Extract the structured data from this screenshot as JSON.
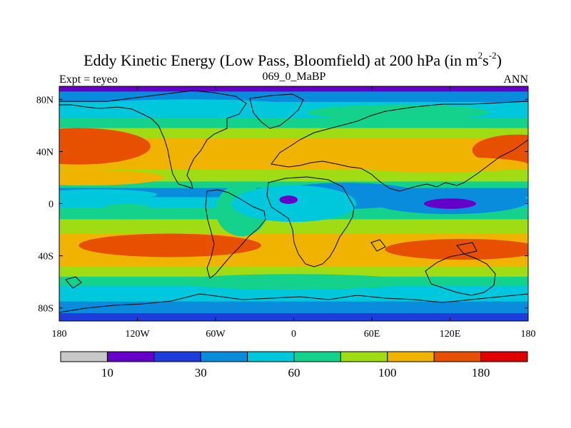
{
  "chart_data": {
    "type": "heatmap",
    "title": {
      "main": "Eddy Kinetic Energy (Low Pass, Bloomfield) at 200 hPa (in m",
      "unit_base": "s",
      "sup1": "2",
      "sup2": "-2",
      "close": ")"
    },
    "subtitle_left": "Expt = teyeo",
    "subtitle_center": "069_0_MaBP",
    "subtitle_right": "ANN",
    "x_range": [
      -180,
      180
    ],
    "y_range": [
      -90,
      90
    ],
    "x_ticks": [
      {
        "value": -180,
        "label": "180"
      },
      {
        "value": -120,
        "label": "120W"
      },
      {
        "value": -60,
        "label": "60W"
      },
      {
        "value": 0,
        "label": "0"
      },
      {
        "value": 60,
        "label": "60E"
      },
      {
        "value": 120,
        "label": "120E"
      },
      {
        "value": 180,
        "label": "180"
      }
    ],
    "y_ticks": [
      {
        "value": 80,
        "label": "80N"
      },
      {
        "value": 40,
        "label": "40N"
      },
      {
        "value": 0,
        "label": "0"
      },
      {
        "value": -40,
        "label": "40S"
      },
      {
        "value": -80,
        "label": "80S"
      }
    ],
    "levels": [
      0,
      10,
      20,
      30,
      45,
      60,
      80,
      100,
      140,
      180,
      220,
      260
    ],
    "colorbar": {
      "colors": [
        "#c8c8c8",
        "#6400c8",
        "#1e3cdc",
        "#0a8cdc",
        "#00c8dc",
        "#14d28c",
        "#a0dc14",
        "#f0b400",
        "#e65000",
        "#e10000"
      ],
      "labels": [
        {
          "text": "10",
          "position_index": 1
        },
        {
          "text": "30",
          "position_index": 3
        },
        {
          "text": "60",
          "position_index": 5
        },
        {
          "text": "100",
          "position_index": 7
        },
        {
          "text": "180",
          "position_index": 9
        }
      ]
    },
    "field_bands": [
      {
        "lat_north": 90,
        "lat_south": 86,
        "value": 15
      },
      {
        "lat_north": 86,
        "lat_south": 78,
        "value": 40
      },
      {
        "lat_north": 78,
        "lat_south": 66,
        "value": 55
      },
      {
        "lat_north": 66,
        "lat_south": 58,
        "value": 70
      },
      {
        "lat_north": 58,
        "lat_south": 50,
        "value": 90
      },
      {
        "lat_north": 50,
        "lat_south": 26,
        "value": 110
      },
      {
        "lat_north": 26,
        "lat_south": 17,
        "value": 90
      },
      {
        "lat_north": 17,
        "lat_south": 12,
        "value": 65
      },
      {
        "lat_north": 12,
        "lat_south": 5,
        "value": 40
      },
      {
        "lat_north": 5,
        "lat_south": -3,
        "value": 55
      },
      {
        "lat_north": -3,
        "lat_south": -12,
        "value": 70
      },
      {
        "lat_north": -12,
        "lat_south": -23,
        "value": 95
      },
      {
        "lat_north": -23,
        "lat_south": -48,
        "value": 120
      },
      {
        "lat_north": -48,
        "lat_south": -56,
        "value": 90
      },
      {
        "lat_north": -56,
        "lat_south": -63,
        "value": 70
      },
      {
        "lat_north": -63,
        "lat_south": -75,
        "value": 55
      },
      {
        "lat_north": -75,
        "lat_south": -84,
        "value": 40
      },
      {
        "lat_north": -84,
        "lat_south": -90,
        "value": 20
      }
    ],
    "field_features": [
      {
        "region": "North Pacific jet maximum",
        "lon_center": -172,
        "lat_center": 43,
        "value": 150
      },
      {
        "region": "North Atlantic jet maximum",
        "lon_center": 172,
        "lat_center": 40,
        "value": 150
      },
      {
        "region": "Equatorial Africa minimum",
        "lon_center": -2,
        "lat_center": 4,
        "value": 15
      },
      {
        "region": "Indian Ocean minimum",
        "lon_center": 120,
        "lat_center": 0,
        "value": 15
      }
    ]
  }
}
